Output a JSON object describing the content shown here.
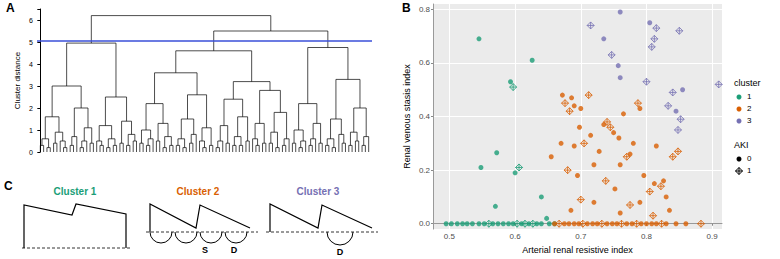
{
  "chart_data": [
    {
      "panel_label": "A",
      "type": "dendrogram",
      "y_label": "Cluster distance",
      "ylim": [
        0,
        6.5
      ],
      "yticks": [
        0,
        1,
        2,
        3,
        4,
        5,
        6
      ],
      "grid": false,
      "tick_labels": "y",
      "color": "#000000",
      "cut": 5.05,
      "cut_color": "#3a4fd8",
      "tree": [
        6.2,
        [
          4.95,
          [
            3.0,
            [
              1.6,
              [
                0.6,
                [
                  0.3,
                  0,
                  0
                ],
                [
                  0.2,
                  0,
                  0
                ]
              ],
              [
                0.9,
                [
                  0.4,
                  0,
                  0
                ],
                [
                  0.5,
                  0,
                  [
                    0.2,
                    0,
                    0
                  ]
                ]
              ]
            ],
            [
              2.0,
              [
                0.7,
                [
                  0.3,
                  0,
                  0
                ],
                0
              ],
              [
                1.1,
                [
                  0.5,
                  [
                    0.2,
                    0,
                    0
                  ],
                  0
                ],
                [
                  0.4,
                  0,
                  0
                ]
              ]
            ]
          ],
          [
            2.5,
            [
              1.2,
              [
                0.5,
                0,
                [
                  0.3,
                  0,
                  0
                ]
              ],
              [
                0.6,
                [
                  0.2,
                  0,
                  0
                ],
                [
                  0.3,
                  0,
                  0
                ]
              ]
            ],
            [
              1.4,
              [
                0.4,
                0,
                0
              ],
              [
                0.8,
                [
                  0.3,
                  0,
                  0
                ],
                [
                  0.5,
                  0,
                  0
                ]
              ]
            ]
          ]
        ],
        [
          5.5,
          [
            4.6,
            [
              3.6,
              [
                2.2,
                [
                  1.0,
                  [
                    0.4,
                    0,
                    0
                  ],
                  [
                    0.6,
                    [
                      0.3,
                      0,
                      0
                    ],
                    0
                  ]
                ],
                [
                  1.3,
                  [
                    0.5,
                    0,
                    0
                  ],
                  [
                    0.7,
                    [
                      0.2,
                      0,
                      0
                    ],
                    [
                      0.3,
                      0,
                      0
                    ]
                  ]
                ]
              ],
              [
                2.6,
                [
                  1.5,
                  [
                    0.6,
                    [
                      0.3,
                      0,
                      0
                    ],
                    [
                      0.2,
                      0,
                      0
                    ]
                  ],
                  [
                    0.8,
                    [
                      0.4,
                      0,
                      0
                    ],
                    0
                  ]
                ],
                [
                  1.1,
                  [
                    0.5,
                    0,
                    [
                      0.2,
                      0,
                      0
                    ]
                  ],
                  [
                    0.3,
                    0,
                    0
                  ]
                ]
              ]
            ],
            [
              3.2,
              [
                2.4,
                [
                  1.2,
                  [
                    0.5,
                    [
                      0.2,
                      0,
                      0
                    ],
                    0
                  ],
                  [
                    0.4,
                    0,
                    0
                  ]
                ],
                [
                  1.6,
                  [
                    0.7,
                    [
                      0.3,
                      0,
                      0
                    ],
                    [
                      0.3,
                      0,
                      0
                    ]
                  ],
                  [
                    0.5,
                    0,
                    0
                  ]
                ]
              ],
              [
                2.8,
                [
                  1.3,
                  [
                    0.6,
                    0,
                    [
                      0.3,
                      0,
                      0
                    ]
                  ],
                  [
                    0.4,
                    0,
                    0
                  ]
                ],
                [
                  1.8,
                  [
                    0.9,
                    [
                      0.4,
                      0,
                      0
                    ],
                    [
                      0.2,
                      0,
                      0
                    ]
                  ],
                  [
                    0.6,
                    [
                      0.3,
                      0,
                      0
                    ],
                    0
                  ]
                ]
              ]
            ]
          ],
          [
            4.75,
            [
              2.2,
              [
                1.0,
                [
                  0.4,
                  0,
                  0
                ],
                [
                  0.5,
                  [
                    0.2,
                    0,
                    0
                  ],
                  0
                ]
              ],
              [
                1.3,
                [
                  0.6,
                  [
                    0.3,
                    0,
                    0
                  ],
                  0
                ],
                [
                  0.4,
                  0,
                  0
                ]
              ]
            ],
            [
              3.3,
              [
                1.5,
                [
                  0.6,
                  [
                    0.3,
                    0,
                    0
                  ],
                  [
                    0.2,
                    0,
                    0
                  ]
                ],
                [
                  0.8,
                  0,
                  [
                    0.4,
                    0,
                    0
                  ]
                ]
              ],
              [
                2.0,
                [
                  0.9,
                  [
                    0.3,
                    0,
                    0
                  ],
                  [
                    0.5,
                    0,
                    0
                  ]
                ],
                [
                  0.7,
                  [
                    0.3,
                    0,
                    0
                  ],
                  0
                ]
              ]
            ]
          ]
        ]
      ]
    },
    {
      "panel_label": "B",
      "type": "scatter",
      "x_label": "Arterial renal resistive index",
      "y_label": "Renal venous stasis index",
      "xlim": [
        0.475,
        0.915
      ],
      "xticks": [
        0.5,
        0.6,
        0.7,
        0.8,
        0.9
      ],
      "ylim": [
        -0.02,
        0.82
      ],
      "yticks": [
        {
          "value": 0,
          "label": "0.0"
        },
        0.2,
        0.4,
        0.6,
        0.8
      ],
      "grid": true,
      "legend": "right",
      "color_legend_title": "cluster",
      "aki_legend": {
        "title": "AKI",
        "entries": [
          {
            "name": "0",
            "marker": "circle"
          },
          {
            "name": "1",
            "marker": "diamond_plus"
          }
        ]
      },
      "series": [
        {
          "name": "1",
          "color": "#1b9e77",
          "x": [
            0.545,
            0.626,
            0.593,
            0.597,
            0.572,
            0.548,
            0.6,
            0.606,
            0.64,
            0.57,
            0.648,
            0.495,
            0.503,
            0.512,
            0.52,
            0.527,
            0.535,
            0.545,
            0.553,
            0.56,
            0.566,
            0.574,
            0.582,
            0.59,
            0.597,
            0.603,
            0.61,
            0.615,
            0.621,
            0.627,
            0.633,
            0.64,
            0.652,
            0.66
          ],
          "values": [
            0.69,
            0.61,
            0.53,
            0.51,
            0.265,
            0.21,
            0.19,
            0.21,
            0.1,
            0.065,
            0.02,
            0,
            0,
            0,
            0,
            0,
            0,
            0,
            0,
            0,
            0,
            0,
            0,
            0,
            0,
            0,
            0,
            0,
            0,
            0,
            0,
            0,
            0,
            0
          ],
          "aki": [
            0,
            0,
            0,
            1,
            0,
            0,
            0,
            1,
            0,
            0,
            0,
            0,
            0,
            0,
            0,
            0,
            0,
            0,
            0,
            1,
            0,
            0,
            0,
            0,
            0,
            1,
            0,
            1,
            0,
            1,
            0,
            0,
            0,
            0
          ]
        },
        {
          "name": "2",
          "color": "#d95f02",
          "x": [
            0.672,
            0.676,
            0.686,
            0.69,
            0.683,
            0.655,
            0.7,
            0.712,
            0.698,
            0.705,
            0.715,
            0.69,
            0.67,
            0.68,
            0.695,
            0.72,
            0.735,
            0.74,
            0.745,
            0.75,
            0.758,
            0.77,
            0.775,
            0.78,
            0.79,
            0.787,
            0.765,
            0.728,
            0.738,
            0.752,
            0.76,
            0.796,
            0.805,
            0.812,
            0.822,
            0.826,
            0.83,
            0.815,
            0.84,
            0.848,
            0.79,
            0.775,
            0.72,
            0.7,
            0.685,
            0.76,
            0.835,
            0.81,
            0.66,
            0.667,
            0.675,
            0.682,
            0.69,
            0.697,
            0.703,
            0.71,
            0.718,
            0.725,
            0.732,
            0.74,
            0.748,
            0.755,
            0.762,
            0.77,
            0.778,
            0.785,
            0.792,
            0.8,
            0.808,
            0.815,
            0.823,
            0.83,
            0.845,
            0.86,
            0.883
          ],
          "values": [
            0.48,
            0.45,
            0.47,
            0.44,
            0.42,
            0.25,
            0.43,
            0.48,
            0.36,
            0.3,
            0.33,
            0.29,
            0.3,
            0.2,
            0.18,
            0.22,
            0.37,
            0.38,
            0.36,
            0.34,
            0.32,
            0.25,
            0.26,
            0.3,
            0.43,
            0.45,
            0.41,
            0.27,
            0.16,
            0.13,
            0.22,
            0.18,
            0.12,
            0.15,
            0.14,
            0.16,
            0.1,
            0.29,
            0.25,
            0.27,
            0.08,
            0.07,
            0.08,
            0.09,
            0.05,
            0.04,
            0.05,
            0.03,
            0,
            0,
            0,
            0,
            0,
            0,
            0,
            0,
            0,
            0,
            0,
            0,
            0,
            0,
            0,
            0,
            0,
            0,
            0,
            0,
            0,
            0,
            0,
            0,
            0,
            0,
            0
          ],
          "aki": [
            0,
            1,
            0,
            0,
            1,
            0,
            0,
            1,
            0,
            1,
            0,
            0,
            0,
            1,
            0,
            0,
            0,
            1,
            1,
            0,
            0,
            1,
            0,
            0,
            0,
            1,
            0,
            0,
            1,
            0,
            0,
            0,
            1,
            0,
            1,
            0,
            0,
            0,
            1,
            1,
            0,
            1,
            0,
            1,
            0,
            0,
            0,
            1,
            0,
            1,
            0,
            0,
            0,
            0,
            1,
            0,
            0,
            0,
            1,
            0,
            0,
            0,
            1,
            0,
            0,
            1,
            0,
            0,
            0,
            0,
            1,
            0,
            0,
            0,
            1
          ]
        },
        {
          "name": "3",
          "color": "#7570b3",
          "x": [
            0.715,
            0.735,
            0.76,
            0.805,
            0.815,
            0.85,
            0.747,
            0.757,
            0.76,
            0.808,
            0.812,
            0.8,
            0.84,
            0.855,
            0.91,
            0.845,
            0.848,
            0.852,
            0.833
          ],
          "values": [
            0.74,
            0.69,
            0.79,
            0.75,
            0.73,
            0.72,
            0.63,
            0.59,
            0.545,
            0.66,
            0.69,
            0.53,
            0.49,
            0.5,
            0.52,
            0.42,
            0.35,
            0.39,
            0.44
          ],
          "aki": [
            1,
            0,
            0,
            0,
            1,
            1,
            1,
            0,
            0,
            1,
            1,
            1,
            1,
            0,
            1,
            0,
            1,
            1,
            1
          ]
        }
      ]
    }
  ],
  "diagram": {
    "panel_label": "C",
    "waveforms": [
      {
        "label": "Cluster 1",
        "color": "#1b9e77",
        "wave_labels": []
      },
      {
        "label": "Cluster 2",
        "color": "#d95f02",
        "wave_labels": [
          "S",
          "D"
        ]
      },
      {
        "label": "Cluster 3",
        "color": "#7570b3",
        "wave_labels": [
          "D"
        ]
      }
    ]
  }
}
